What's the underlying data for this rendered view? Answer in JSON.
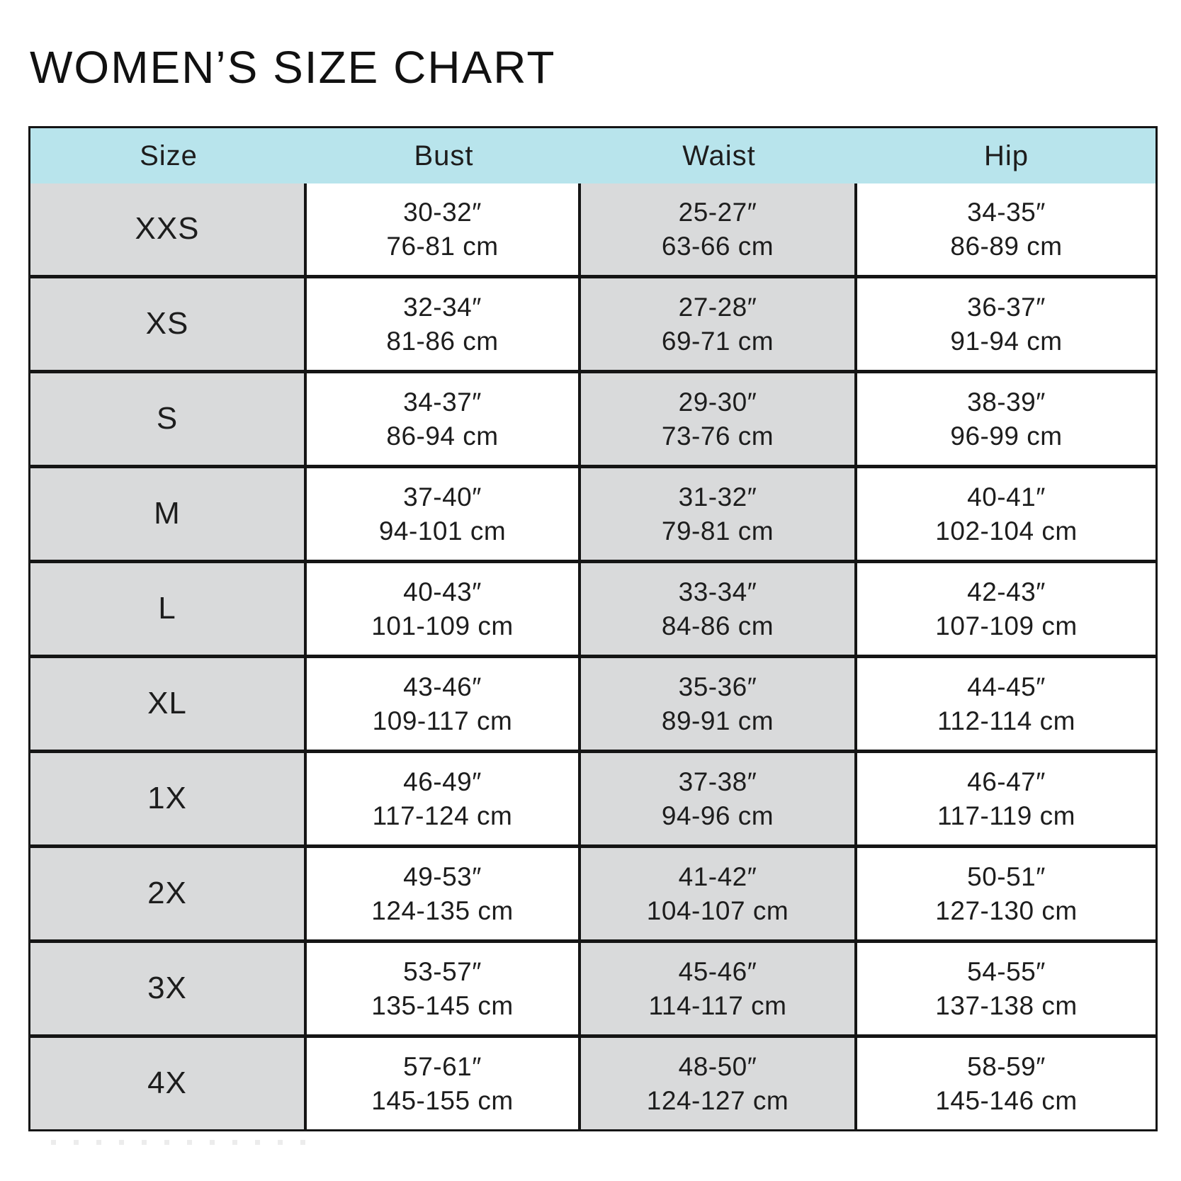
{
  "page": {
    "title": "WOMEN’S SIZE CHART"
  },
  "colors": {
    "header_bg": "#b8e4ec",
    "shaded_column_bg": "#d9dadb",
    "border": "#151515",
    "text": "#1d1d1d",
    "background": "#ffffff"
  },
  "table": {
    "columns": [
      "Size",
      "Bust",
      "Waist",
      "Hip"
    ],
    "rows": [
      {
        "size": "XXS",
        "bust_in": "30-32″",
        "bust_cm": "76-81 cm",
        "waist_in": "25-27″",
        "waist_cm": "63-66 cm",
        "hip_in": "34-35″",
        "hip_cm": "86-89 cm"
      },
      {
        "size": "XS",
        "bust_in": "32-34″",
        "bust_cm": "81-86 cm",
        "waist_in": "27-28″",
        "waist_cm": "69-71 cm",
        "hip_in": "36-37″",
        "hip_cm": "91-94 cm"
      },
      {
        "size": "S",
        "bust_in": "34-37″",
        "bust_cm": "86-94 cm",
        "waist_in": "29-30″",
        "waist_cm": "73-76 cm",
        "hip_in": "38-39″",
        "hip_cm": "96-99 cm"
      },
      {
        "size": "M",
        "bust_in": "37-40″",
        "bust_cm": "94-101 cm",
        "waist_in": "31-32″",
        "waist_cm": "79-81 cm",
        "hip_in": "40-41″",
        "hip_cm": "102-104 cm"
      },
      {
        "size": "L",
        "bust_in": "40-43″",
        "bust_cm": "101-109 cm",
        "waist_in": "33-34″",
        "waist_cm": "84-86 cm",
        "hip_in": "42-43″",
        "hip_cm": "107-109 cm"
      },
      {
        "size": "XL",
        "bust_in": "43-46″",
        "bust_cm": "109-117 cm",
        "waist_in": "35-36″",
        "waist_cm": "89-91 cm",
        "hip_in": "44-45″",
        "hip_cm": "112-114 cm"
      },
      {
        "size": "1X",
        "bust_in": "46-49″",
        "bust_cm": "117-124 cm",
        "waist_in": "37-38″",
        "waist_cm": "94-96 cm",
        "hip_in": "46-47″",
        "hip_cm": "117-119 cm"
      },
      {
        "size": "2X",
        "bust_in": "49-53″",
        "bust_cm": "124-135 cm",
        "waist_in": "41-42″",
        "waist_cm": "104-107 cm",
        "hip_in": "50-51″",
        "hip_cm": "127-130 cm"
      },
      {
        "size": "3X",
        "bust_in": "53-57″",
        "bust_cm": "135-145 cm",
        "waist_in": "45-46″",
        "waist_cm": "114-117 cm",
        "hip_in": "54-55″",
        "hip_cm": "137-138 cm"
      },
      {
        "size": "4X",
        "bust_in": "57-61″",
        "bust_cm": "145-155 cm",
        "waist_in": "48-50″",
        "waist_cm": "124-127 cm",
        "hip_in": "58-59″",
        "hip_cm": "145-146 cm"
      }
    ]
  },
  "chart_data": {
    "type": "table",
    "title": "WOMEN’S SIZE CHART",
    "columns": [
      "Size",
      "Bust",
      "Waist",
      "Hip"
    ],
    "rows": [
      [
        "XXS",
        "30-32″ / 76-81 cm",
        "25-27″ / 63-66 cm",
        "34-35″ / 86-89 cm"
      ],
      [
        "XS",
        "32-34″ / 81-86 cm",
        "27-28″ / 69-71 cm",
        "36-37″ / 91-94 cm"
      ],
      [
        "S",
        "34-37″ / 86-94 cm",
        "29-30″ / 73-76 cm",
        "38-39″ / 96-99 cm"
      ],
      [
        "M",
        "37-40″ / 94-101 cm",
        "31-32″ / 79-81 cm",
        "40-41″ / 102-104 cm"
      ],
      [
        "L",
        "40-43″ / 101-109 cm",
        "33-34″ / 84-86 cm",
        "42-43″ / 107-109 cm"
      ],
      [
        "XL",
        "43-46″ / 109-117 cm",
        "35-36″ / 89-91 cm",
        "44-45″ / 112-114 cm"
      ],
      [
        "1X",
        "46-49″ / 117-124 cm",
        "37-38″ / 94-96 cm",
        "46-47″ / 117-119 cm"
      ],
      [
        "2X",
        "49-53″ / 124-135 cm",
        "41-42″ / 104-107 cm",
        "50-51″ / 127-130 cm"
      ],
      [
        "3X",
        "53-57″ / 135-145 cm",
        "45-46″ / 114-117 cm",
        "54-55″ / 137-138 cm"
      ],
      [
        "4X",
        "57-61″ / 145-155 cm",
        "48-50″ / 124-127 cm",
        "58-59″ / 145-146 cm"
      ]
    ],
    "layout": {
      "header_background": "#b8e4ec",
      "shaded_columns": [
        "Size",
        "Waist"
      ],
      "shaded_column_background": "#d9dadb",
      "grid": "on"
    }
  },
  "decor": {
    "dot_count": 12
  }
}
